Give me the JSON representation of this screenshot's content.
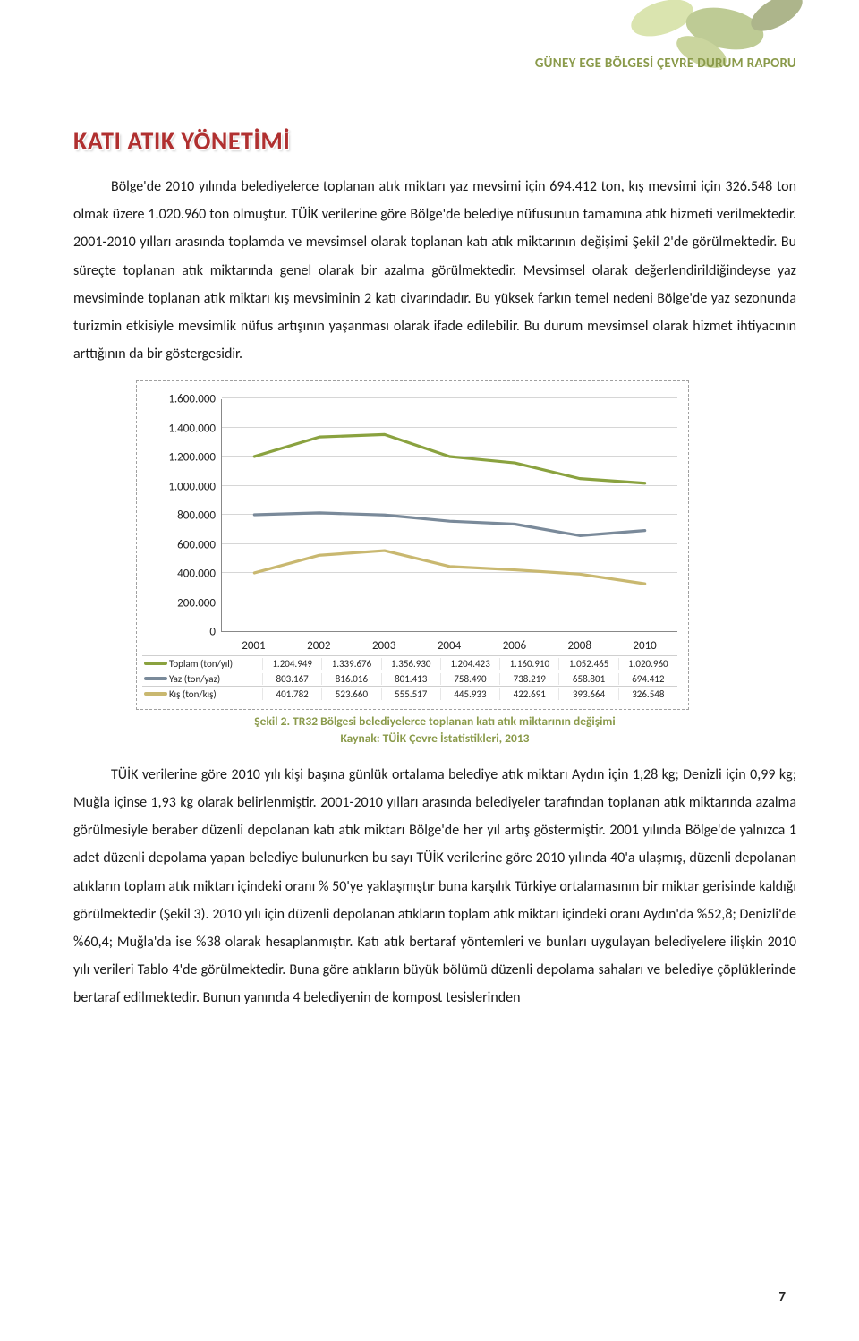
{
  "header": {
    "report_title": "GÜNEY EGE BÖLGESİ ÇEVRE DURUM RAPORU"
  },
  "section": {
    "title": "KATI ATIK YÖNETİMİ"
  },
  "paragraphs": {
    "p1": "Bölge'de 2010 yılında belediyelerce toplanan atık miktarı yaz mevsimi için 694.412 ton, kış mevsimi için 326.548 ton olmak üzere 1.020.960 ton olmuştur. TÜİK verilerine göre Bölge'de belediye nüfusunun tamamına atık hizmeti verilmektedir. 2001-2010 yılları arasında toplamda ve mevsimsel olarak toplanan katı atık miktarının değişimi Şekil 2'de görülmektedir. Bu süreçte toplanan atık miktarında genel olarak bir azalma görülmektedir. Mevsimsel olarak değerlendirildiğindeyse yaz mevsiminde toplanan atık miktarı kış mevsiminin 2 katı civarındadır. Bu yüksek farkın temel nedeni Bölge'de yaz sezonunda turizmin etkisiyle mevsimlik nüfus artışının yaşanması olarak ifade edilebilir. Bu durum mevsimsel olarak hizmet ihtiyacının arttığının da bir göstergesidir.",
    "p2": "TÜİK verilerine göre 2010 yılı kişi başına günlük ortalama belediye atık miktarı Aydın için 1,28 kg; Denizli için 0,99 kg; Muğla içinse 1,93 kg olarak belirlenmiştir. 2001-2010 yılları arasında belediyeler tarafından toplanan atık miktarında azalma görülmesiyle beraber düzenli depolanan katı atık miktarı Bölge'de her yıl artış göstermiştir. 2001 yılında Bölge'de yalnızca 1 adet düzenli depolama yapan belediye bulunurken bu sayı TÜİK verilerine göre 2010 yılında 40'a ulaşmış, düzenli depolanan atıkların toplam atık miktarı içindeki oranı % 50'ye yaklaşmıştır buna karşılık Türkiye ortalamasının bir miktar gerisinde kaldığı görülmektedir (Şekil 3). 2010 yılı için düzenli depolanan atıkların toplam atık miktarı içindeki oranı Aydın'da %52,8; Denizli'de %60,4; Muğla'da ise %38 olarak hesaplanmıştır. Katı atık bertaraf yöntemleri ve bunları uygulayan belediyelere ilişkin 2010 yılı verileri Tablo 4'de görülmektedir. Buna göre atıkların büyük bölümü düzenli depolama sahaları ve belediye çöplüklerinde bertaraf edilmektedir. Bunun yanında 4 belediyenin de kompost tesislerinden"
  },
  "chart": {
    "type": "line",
    "ylim": [
      0,
      1600000
    ],
    "ytick_step": 200000,
    "y_ticks": [
      "0",
      "200.000",
      "400.000",
      "600.000",
      "800.000",
      "1.000.000",
      "1.200.000",
      "1.400.000",
      "1.600.000"
    ],
    "x_labels": [
      "2001",
      "2002",
      "2003",
      "2004",
      "2006",
      "2008",
      "2010"
    ],
    "grid_color": "#d6d6d6",
    "background_color": "#ffffff",
    "axis_font_size": 13,
    "line_width": 3.2,
    "series": [
      {
        "name": "Toplam (ton/yıl)",
        "color": "#8aa23f",
        "values": [
          1204949,
          1339676,
          1356930,
          1204423,
          1160910,
          1052465,
          1020960
        ],
        "labels": [
          "1.204.949",
          "1.339.676",
          "1.356.930",
          "1.204.423",
          "1.160.910",
          "1.052.465",
          "1.020.960"
        ]
      },
      {
        "name": "Yaz (ton/yaz)",
        "color": "#7a8a9a",
        "values": [
          803167,
          816016,
          801413,
          758490,
          738219,
          658801,
          694412
        ],
        "labels": [
          "803.167",
          "816.016",
          "801.413",
          "758.490",
          "738.219",
          "658.801",
          "694.412"
        ]
      },
      {
        "name": "Kış (ton/kış)",
        "color": "#c9b870",
        "values": [
          401782,
          523660,
          555517,
          445933,
          422691,
          393664,
          326548
        ],
        "labels": [
          "401.782",
          "523.660",
          "555.517",
          "445.933",
          "422.691",
          "393.664",
          "326.548"
        ]
      }
    ]
  },
  "caption": {
    "line1": "Şekil 2. TR32 Bölgesi belediyelerce toplanan katı atık miktarının değişimi",
    "line2": "Kaynak: TÜİK Çevre İstatistikleri, 2013"
  },
  "page_number": "7",
  "decor": {
    "leaf_green": "#8aa23f",
    "leaf_light": "#bccf6e",
    "leaf_olive": "#6b7a2e"
  }
}
